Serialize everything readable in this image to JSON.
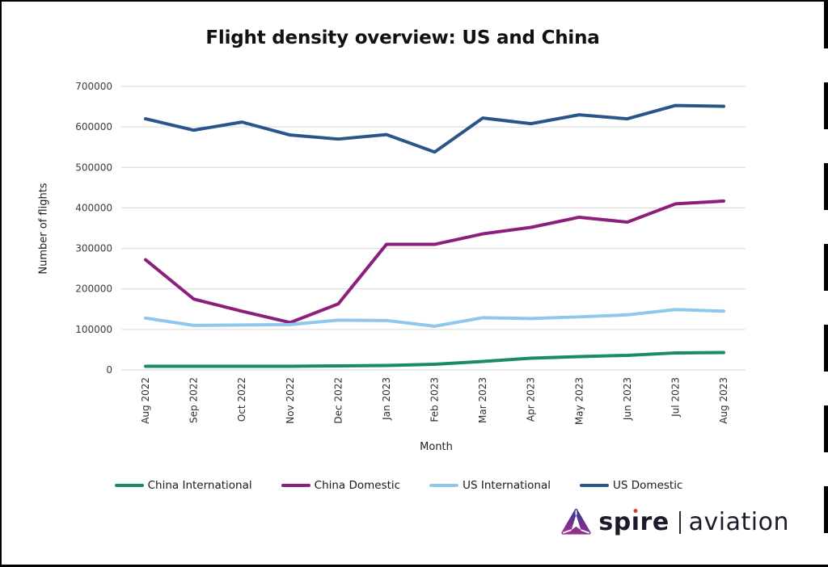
{
  "page": {
    "title": "Flight density overview: US and China"
  },
  "chart_data": {
    "type": "line",
    "title": "Flight density overview: US and China",
    "xlabel": "Month",
    "ylabel": "Number of flights",
    "ylim": [
      0,
      700000
    ],
    "ytick_step": 100000,
    "grid": "horizontal",
    "grid_color": "#d9d9d9",
    "legend_position": "bottom",
    "categories": [
      "Aug 2022",
      "Sep 2022",
      "Oct 2022",
      "Nov 2022",
      "Dec 2022",
      "Jan 2023",
      "Feb 2023",
      "Mar 2023",
      "Apr 2023",
      "May 2023",
      "Jun 2023",
      "Jul 2023",
      "Aug 2023"
    ],
    "series": [
      {
        "name": "China International",
        "color": "#1B8A6B",
        "values": [
          9000,
          9000,
          9000,
          9000,
          10000,
          11000,
          14000,
          21000,
          29000,
          33000,
          36000,
          42000,
          43000
        ]
      },
      {
        "name": "China Domestic",
        "color": "#8C1F7B",
        "values": [
          272000,
          175000,
          145000,
          117000,
          163000,
          310000,
          310000,
          336000,
          352000,
          377000,
          365000,
          410000,
          417000
        ]
      },
      {
        "name": "US International",
        "color": "#90C7EC",
        "values": [
          128000,
          110000,
          111000,
          112000,
          123000,
          122000,
          108000,
          129000,
          127000,
          131000,
          136000,
          149000,
          145000
        ]
      },
      {
        "name": "US Domestic",
        "color": "#2A5589",
        "values": [
          620000,
          592000,
          612000,
          580000,
          570000,
          581000,
          538000,
          622000,
          608000,
          630000,
          620000,
          653000,
          651000
        ]
      }
    ]
  },
  "footer": {
    "brand_primary": "spire",
    "brand_secondary": "aviation",
    "logo_colors": {
      "top": "#2E3F8F",
      "mid": "#6F2F91",
      "bottom": "#9A308E",
      "dot": "#D93A35"
    }
  }
}
